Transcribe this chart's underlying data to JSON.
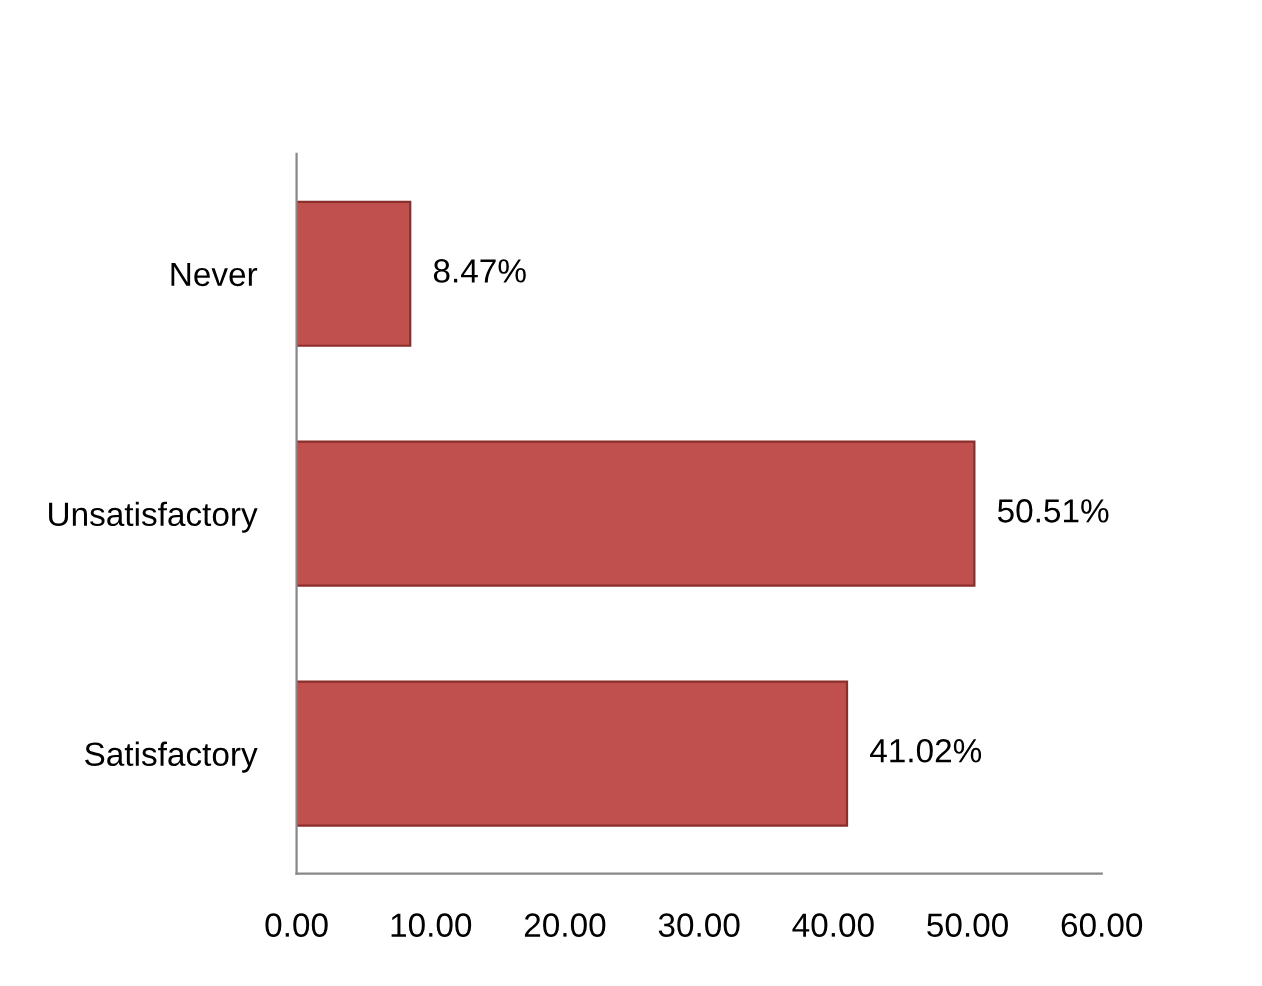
{
  "chart_data": {
    "type": "bar",
    "orientation": "horizontal",
    "categories": [
      "Never",
      "Unsatisfactory",
      "Satisfactory"
    ],
    "values": [
      8.47,
      50.51,
      41.02
    ],
    "color": "#c0504d",
    "value_labels": [
      "8.47%",
      "50.51%",
      "41.02%"
    ],
    "xlim": [
      0,
      60
    ],
    "xticks": [
      {
        "value": 0,
        "label": "0.00"
      },
      {
        "value": 10,
        "label": "10.00"
      },
      {
        "value": 20,
        "label": "20.00"
      },
      {
        "value": 30,
        "label": "30.00"
      },
      {
        "value": 40,
        "label": "40.00"
      },
      {
        "value": 50,
        "label": "50.00"
      },
      {
        "value": 60,
        "label": "60.00"
      }
    ],
    "grid": false,
    "legend": false
  }
}
